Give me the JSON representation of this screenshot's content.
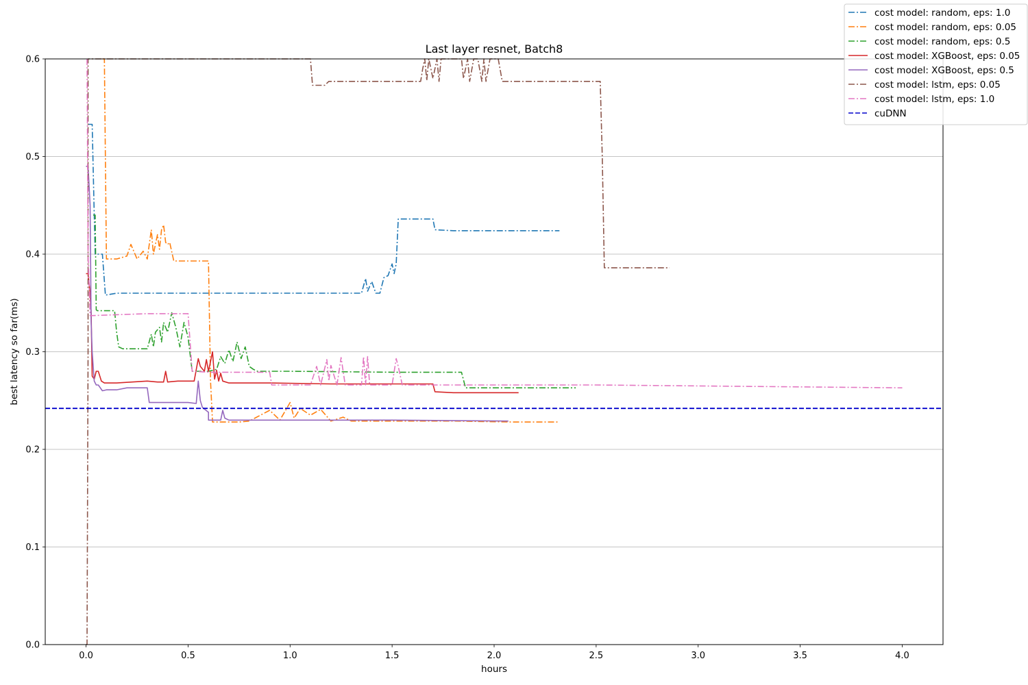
{
  "chart_data": {
    "type": "line",
    "title": "Last layer resnet, Batch8",
    "xlabel": "hours",
    "ylabel": "best latency so far(ms)",
    "xlim": [
      -0.2,
      4.2
    ],
    "ylim": [
      0.0,
      0.6
    ],
    "xticks": [
      "0.0",
      "0.5",
      "1.0",
      "1.5",
      "2.0",
      "2.5",
      "3.0",
      "3.5",
      "4.0"
    ],
    "yticks": [
      "0.0",
      "0.1",
      "0.2",
      "0.3",
      "0.4",
      "0.5",
      "0.6"
    ],
    "grid": "horizontal",
    "legend_position": "top-right",
    "series": [
      {
        "name": "cost model: random, eps: 1.0",
        "color": "#1f77b4",
        "linestyle": "dashdot",
        "x": [
          0.01,
          0.03,
          0.04,
          0.045,
          0.08,
          0.095,
          0.15,
          0.5,
          1.0,
          1.35,
          1.37,
          1.38,
          1.4,
          1.42,
          1.44,
          1.46,
          1.48,
          1.5,
          1.51,
          1.52,
          1.53,
          1.54,
          1.7,
          1.71,
          1.8,
          2.32
        ],
        "y": [
          0.533,
          0.533,
          0.44,
          0.4,
          0.4,
          0.358,
          0.36,
          0.36,
          0.36,
          0.36,
          0.375,
          0.362,
          0.372,
          0.36,
          0.36,
          0.376,
          0.378,
          0.39,
          0.38,
          0.39,
          0.436,
          0.436,
          0.436,
          0.425,
          0.424,
          0.424
        ]
      },
      {
        "name": "cost model: random, eps: 0.05",
        "color": "#ff7f0e",
        "linestyle": "dashdot",
        "x": [
          0.08,
          0.09,
          0.1,
          0.15,
          0.2,
          0.22,
          0.25,
          0.28,
          0.3,
          0.31,
          0.32,
          0.33,
          0.35,
          0.36,
          0.37,
          0.38,
          0.39,
          0.4,
          0.41,
          0.43,
          0.45,
          0.6,
          0.61,
          0.62,
          0.7,
          0.75,
          0.8,
          0.9,
          0.95,
          1.0,
          1.02,
          1.05,
          1.1,
          1.15,
          1.2,
          1.26,
          1.3,
          1.5,
          1.8,
          2.1,
          2.32
        ],
        "y": [
          0.6,
          0.6,
          0.395,
          0.395,
          0.398,
          0.41,
          0.395,
          0.403,
          0.395,
          0.41,
          0.425,
          0.4,
          0.42,
          0.405,
          0.425,
          0.43,
          0.412,
          0.41,
          0.412,
          0.393,
          0.393,
          0.393,
          0.27,
          0.228,
          0.228,
          0.228,
          0.229,
          0.24,
          0.23,
          0.248,
          0.232,
          0.242,
          0.235,
          0.241,
          0.229,
          0.233,
          0.229,
          0.229,
          0.229,
          0.228,
          0.228
        ]
      },
      {
        "name": "cost model: random, eps: 0.5",
        "color": "#2ca02c",
        "linestyle": "dashdot",
        "x": [
          0.035,
          0.045,
          0.05,
          0.055,
          0.14,
          0.15,
          0.16,
          0.18,
          0.2,
          0.25,
          0.3,
          0.32,
          0.33,
          0.34,
          0.36,
          0.37,
          0.38,
          0.4,
          0.42,
          0.44,
          0.46,
          0.48,
          0.5,
          0.52,
          0.54,
          0.56,
          0.6,
          0.64,
          0.66,
          0.68,
          0.7,
          0.72,
          0.74,
          0.76,
          0.78,
          0.8,
          0.82,
          0.84,
          0.86,
          0.9,
          1.0,
          1.5,
          1.84,
          1.86,
          2.0,
          2.4
        ],
        "y": [
          0.44,
          0.44,
          0.343,
          0.342,
          0.342,
          0.32,
          0.305,
          0.303,
          0.303,
          0.303,
          0.303,
          0.318,
          0.305,
          0.32,
          0.325,
          0.31,
          0.33,
          0.32,
          0.34,
          0.325,
          0.305,
          0.33,
          0.315,
          0.28,
          0.28,
          0.28,
          0.28,
          0.282,
          0.295,
          0.288,
          0.302,
          0.29,
          0.31,
          0.293,
          0.305,
          0.285,
          0.282,
          0.28,
          0.28,
          0.28,
          0.28,
          0.279,
          0.279,
          0.263,
          0.263,
          0.263
        ]
      },
      {
        "name": "cost model: XGBoost, eps: 0.05",
        "color": "#d62728",
        "linestyle": "solid",
        "x": [
          0.0,
          0.01,
          0.02,
          0.025,
          0.03,
          0.04,
          0.05,
          0.06,
          0.075,
          0.09,
          0.15,
          0.3,
          0.35,
          0.38,
          0.39,
          0.4,
          0.45,
          0.5,
          0.53,
          0.55,
          0.56,
          0.58,
          0.59,
          0.6,
          0.61,
          0.62,
          0.63,
          0.64,
          0.65,
          0.66,
          0.67,
          0.7,
          0.9,
          1.2,
          1.5,
          1.7,
          1.71,
          1.8,
          2.12
        ],
        "y": [
          0.38,
          0.38,
          0.36,
          0.34,
          0.275,
          0.272,
          0.28,
          0.28,
          0.27,
          0.268,
          0.268,
          0.27,
          0.269,
          0.269,
          0.28,
          0.269,
          0.27,
          0.27,
          0.27,
          0.293,
          0.285,
          0.28,
          0.292,
          0.28,
          0.29,
          0.3,
          0.272,
          0.281,
          0.27,
          0.278,
          0.27,
          0.268,
          0.268,
          0.267,
          0.267,
          0.267,
          0.259,
          0.258,
          0.258
        ]
      },
      {
        "name": "cost model: XGBoost, eps: 0.5",
        "color": "#9467bd",
        "linestyle": "solid",
        "x": [
          0.0,
          0.01,
          0.02,
          0.025,
          0.03,
          0.04,
          0.05,
          0.06,
          0.08,
          0.1,
          0.15,
          0.2,
          0.3,
          0.31,
          0.4,
          0.5,
          0.54,
          0.55,
          0.56,
          0.57,
          0.6,
          0.6,
          0.66,
          0.67,
          0.68,
          0.7,
          1.0,
          1.5,
          2.07
        ],
        "y": [
          0.49,
          0.49,
          0.45,
          0.33,
          0.3,
          0.27,
          0.266,
          0.266,
          0.26,
          0.261,
          0.261,
          0.263,
          0.263,
          0.248,
          0.248,
          0.248,
          0.247,
          0.27,
          0.25,
          0.243,
          0.238,
          0.23,
          0.23,
          0.24,
          0.232,
          0.23,
          0.23,
          0.23,
          0.229
        ]
      },
      {
        "name": "cost model: lstm, eps: 0.05",
        "color": "#8c564b",
        "linestyle": "dashdot",
        "x": [
          0.0,
          0.005,
          0.01,
          0.01,
          1.1,
          1.11,
          1.17,
          1.19,
          1.3,
          1.5,
          1.64,
          1.65,
          1.66,
          1.67,
          1.68,
          1.7,
          1.72,
          1.73,
          1.74,
          1.76,
          1.78,
          1.8,
          1.84,
          1.85,
          1.87,
          1.88,
          1.9,
          1.92,
          1.94,
          1.95,
          1.96,
          1.98,
          2.0,
          2.02,
          2.04,
          2.06,
          2.2,
          2.4,
          2.52,
          2.53,
          2.54,
          2.6,
          2.8,
          2.86
        ],
        "y": [
          0.0,
          0.0,
          0.3,
          0.6,
          0.6,
          0.573,
          0.573,
          0.577,
          0.577,
          0.577,
          0.577,
          0.59,
          0.6,
          0.578,
          0.6,
          0.58,
          0.6,
          0.577,
          0.6,
          0.6,
          0.6,
          0.6,
          0.6,
          0.58,
          0.6,
          0.577,
          0.6,
          0.6,
          0.577,
          0.6,
          0.577,
          0.6,
          0.6,
          0.6,
          0.577,
          0.577,
          0.577,
          0.577,
          0.577,
          0.5,
          0.386,
          0.386,
          0.386,
          0.386
        ]
      },
      {
        "name": "cost model: lstm, eps: 1.0",
        "color": "#e377c2",
        "linestyle": "dashdot",
        "x": [
          0.005,
          0.01,
          0.02,
          0.3,
          0.5,
          0.52,
          0.6,
          0.9,
          0.91,
          1.0,
          1.1,
          1.13,
          1.15,
          1.18,
          1.19,
          1.2,
          1.23,
          1.25,
          1.27,
          1.3,
          1.35,
          1.36,
          1.37,
          1.38,
          1.39,
          1.4,
          1.5,
          1.52,
          1.53,
          1.55,
          1.6,
          1.7,
          1.8,
          2.0,
          2.5,
          3.0,
          3.5,
          4.0
        ],
        "y": [
          0.6,
          0.4,
          0.337,
          0.339,
          0.339,
          0.28,
          0.279,
          0.279,
          0.266,
          0.266,
          0.266,
          0.285,
          0.266,
          0.292,
          0.27,
          0.286,
          0.266,
          0.294,
          0.266,
          0.266,
          0.266,
          0.295,
          0.266,
          0.295,
          0.266,
          0.266,
          0.266,
          0.293,
          0.285,
          0.266,
          0.266,
          0.266,
          0.266,
          0.266,
          0.266,
          0.265,
          0.264,
          0.263
        ]
      },
      {
        "name": "cuDNN",
        "color": "#0000cc",
        "linestyle": "dashed",
        "y_constant": 0.242
      }
    ]
  }
}
